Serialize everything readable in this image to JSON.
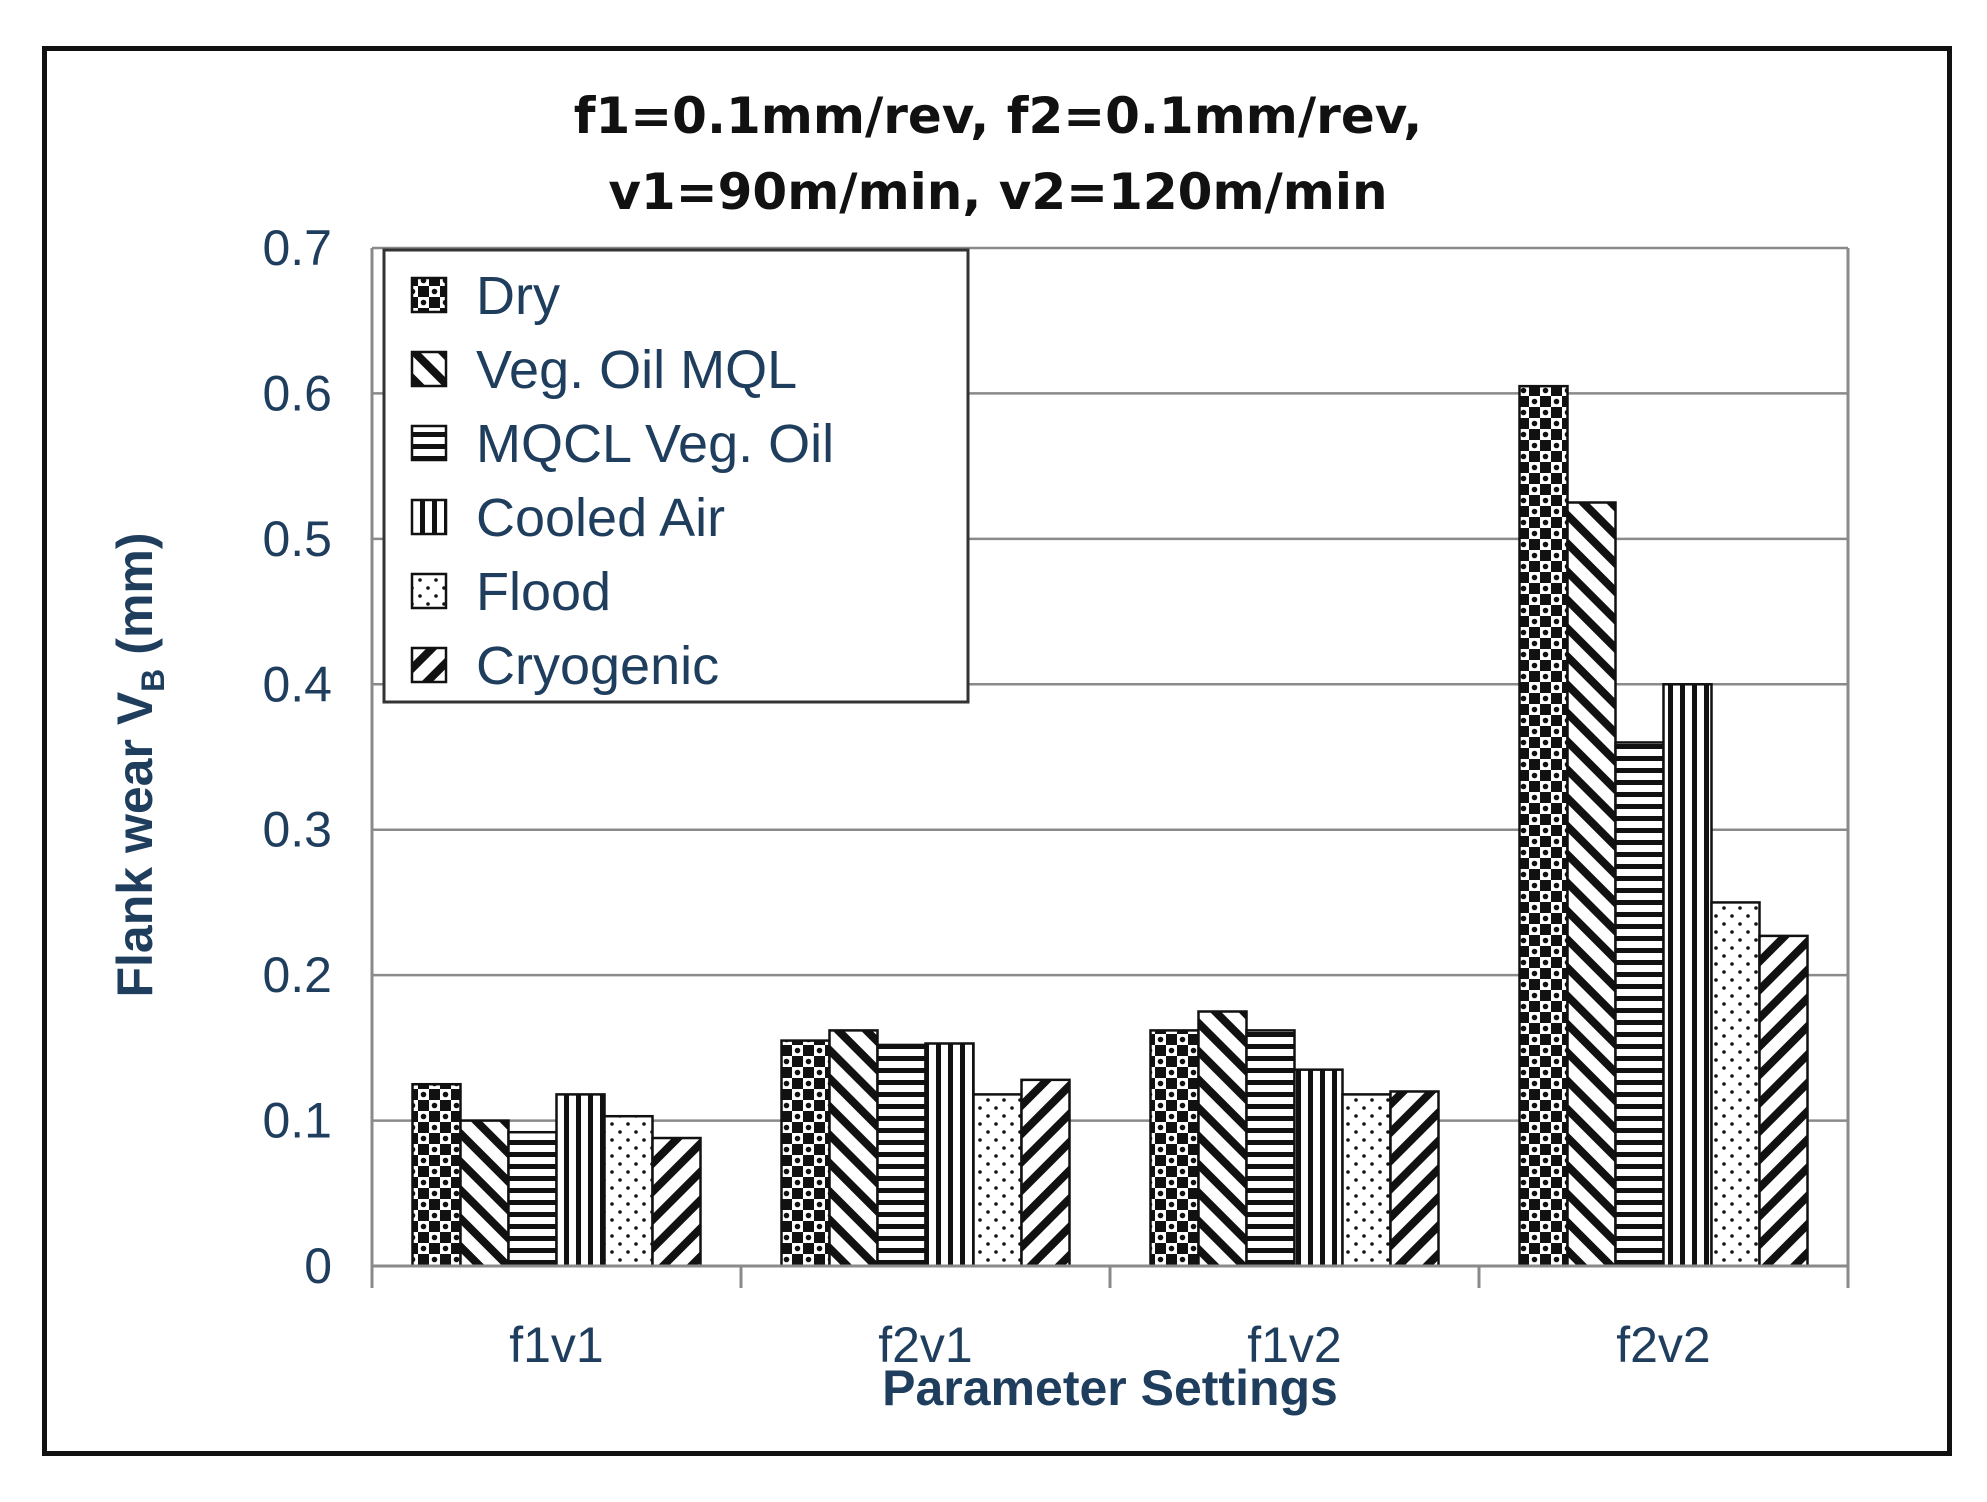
{
  "chart_data": {
    "type": "bar",
    "title_lines": [
      "f1=0.1mm/rev, f2=0.1mm/rev,",
      "v1=90m/min, v2=120m/min"
    ],
    "xlabel": "Parameter Settings",
    "ylabel": "Flank wear V",
    "ylabel_subscript": "B",
    "ylabel_unit": "(mm)",
    "categories": [
      "f1v1",
      "f2v1",
      "f1v2",
      "f2v2"
    ],
    "ylim": [
      0,
      0.7
    ],
    "yticks": [
      "0",
      "0.1",
      "0.2",
      "0.3",
      "0.4",
      "0.5",
      "0.6",
      "0.7"
    ],
    "grid": true,
    "legend_position": "top-left",
    "series": [
      {
        "name": "Dry",
        "pattern": "checker",
        "values": [
          0.125,
          0.155,
          0.162,
          0.605
        ]
      },
      {
        "name": "Veg. Oil MQL",
        "pattern": "back-diagonal",
        "values": [
          0.1,
          0.162,
          0.175,
          0.525
        ]
      },
      {
        "name": "MQCL Veg. Oil",
        "pattern": "horizontal",
        "values": [
          0.092,
          0.152,
          0.162,
          0.36
        ]
      },
      {
        "name": "Cooled Air",
        "pattern": "vertical",
        "values": [
          0.118,
          0.153,
          0.135,
          0.4
        ]
      },
      {
        "name": "Flood",
        "pattern": "dots",
        "values": [
          0.103,
          0.118,
          0.118,
          0.25
        ]
      },
      {
        "name": "Cryogenic",
        "pattern": "forward-diagonal",
        "values": [
          0.088,
          0.128,
          0.12,
          0.227
        ]
      }
    ]
  }
}
